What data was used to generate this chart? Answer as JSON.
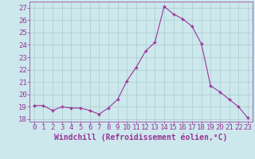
{
  "x": [
    0,
    1,
    2,
    3,
    4,
    5,
    6,
    7,
    8,
    9,
    10,
    11,
    12,
    13,
    14,
    15,
    16,
    17,
    18,
    19,
    20,
    21,
    22,
    23
  ],
  "y": [
    19.1,
    19.1,
    18.7,
    19.0,
    18.9,
    18.9,
    18.7,
    18.4,
    18.9,
    19.6,
    21.1,
    22.2,
    23.5,
    24.2,
    27.1,
    26.5,
    26.1,
    25.5,
    24.1,
    20.7,
    20.2,
    19.6,
    19.0,
    18.1
  ],
  "line_color": "#993399",
  "marker_color": "#993399",
  "bg_color": "#cce8ed",
  "grid_color": "#aacccc",
  "tick_color": "#993399",
  "xlabel": "Windchill (Refroidissement éolien,°C)",
  "ylabel": "",
  "ylim": [
    17.8,
    27.5
  ],
  "yticks": [
    18,
    19,
    20,
    21,
    22,
    23,
    24,
    25,
    26,
    27
  ],
  "font_color": "#993399",
  "font_size": 6.5
}
